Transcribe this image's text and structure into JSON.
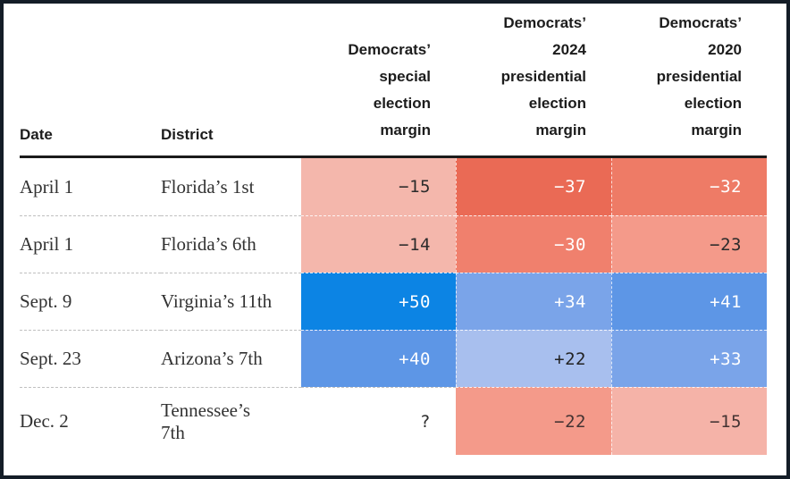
{
  "frame": {
    "border_color": "#141d27",
    "background": "#ffffff",
    "header_rule_color": "#1b1b1b"
  },
  "header": {
    "date": "Date",
    "district": "District",
    "special": "Democrats’ special election margin",
    "pres2024": "Democrats’ 2024 presidential election margin",
    "pres2020": "Democrats’ 2020 presidential election margin"
  },
  "rows": [
    {
      "date": "April 1",
      "district": "Florida’s 1st",
      "special": {
        "value": "−15",
        "bg": "#f4b7ac",
        "text": "#2b2b2b"
      },
      "pres2024": {
        "value": "−37",
        "bg": "#ea6a55",
        "text": "#ffffff"
      },
      "pres2020": {
        "value": "−32",
        "bg": "#ee7b66",
        "text": "#ffffff"
      }
    },
    {
      "date": "April 1",
      "district": "Florida’s 6th",
      "special": {
        "value": "−14",
        "bg": "#f4b7ac",
        "text": "#2b2b2b"
      },
      "pres2024": {
        "value": "−30",
        "bg": "#f0806d",
        "text": "#ffffff"
      },
      "pres2020": {
        "value": "−23",
        "bg": "#f49a8a",
        "text": "#2b2b2b"
      }
    },
    {
      "date": "Sept. 9",
      "district": "Virginia’s 11th",
      "special": {
        "value": "+50",
        "bg": "#0c84e4",
        "text": "#ffffff"
      },
      "pres2024": {
        "value": "+34",
        "bg": "#7aa4e9",
        "text": "#ffffff"
      },
      "pres2020": {
        "value": "+41",
        "bg": "#5d96e6",
        "text": "#ffffff"
      }
    },
    {
      "date": "Sept. 23",
      "district": "Arizona’s 7th",
      "special": {
        "value": "+40",
        "bg": "#5d96e6",
        "text": "#ffffff"
      },
      "pres2024": {
        "value": "+22",
        "bg": "#a8bfee",
        "text": "#222222"
      },
      "pres2020": {
        "value": "+33",
        "bg": "#7aa4e9",
        "text": "#ffffff"
      }
    },
    {
      "date": "Dec. 2",
      "district": "Tennessee’s 7th",
      "special": {
        "value": "?",
        "text": "#2b2b2b"
      },
      "pres2024": {
        "value": "−22",
        "bg": "#f49a8a",
        "text": "#433332"
      },
      "pres2020": {
        "value": "−15",
        "bg": "#f5b3a8",
        "text": "#433332"
      }
    }
  ],
  "chart_data": {
    "type": "table",
    "title": "",
    "columns": [
      "Date",
      "District",
      "Democrats’ special election margin",
      "Democrats’ 2024 presidential election margin",
      "Democrats’ 2020 presidential election margin"
    ],
    "rows": [
      [
        "April 1",
        "Florida’s 1st",
        -15,
        -37,
        -32
      ],
      [
        "April 1",
        "Florida’s 6th",
        -14,
        -30,
        -23
      ],
      [
        "Sept. 9",
        "Virginia’s 11th",
        50,
        34,
        41
      ],
      [
        "Sept. 23",
        "Arizona’s 7th",
        40,
        22,
        33
      ],
      [
        "Dec. 2",
        "Tennessee’s 7th",
        null,
        -22,
        -15
      ]
    ],
    "layout_hints": {
      "cell_shading": "red for negative (Republican) margins, blue for positive (Democratic) margins, intensity scales with magnitude",
      "unknown_value_symbol": "?",
      "separators": "dashed row dividers, solid rule under header"
    }
  }
}
